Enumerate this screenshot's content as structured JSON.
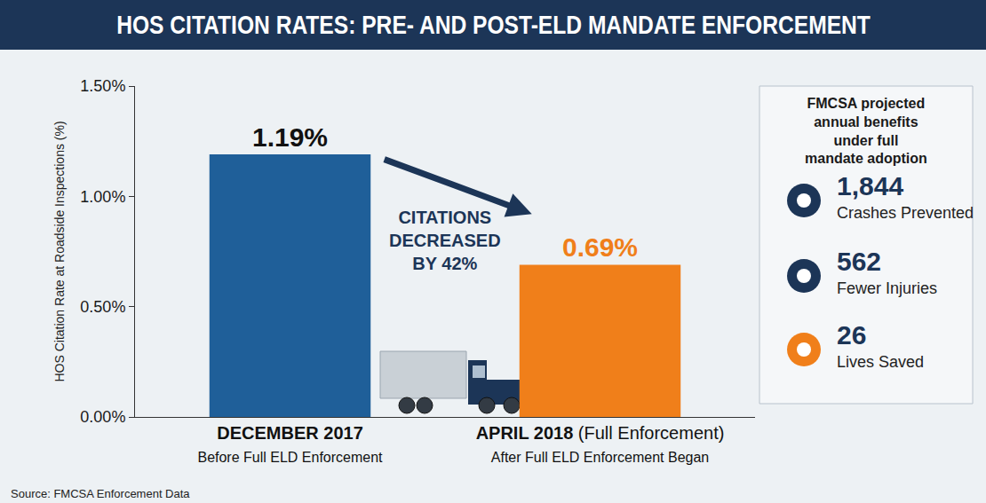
{
  "chart_data": {
    "type": "bar",
    "title": "HOS CITATION RATES: PRE- AND POST-ELD MANDATE ENFORCEMENT",
    "y_label": "HOS Citation Rate at Roadside Inspections (%)",
    "categories": [
      "DECEMBER 2017",
      "APRIL 2018 (Full Enforcement)"
    ],
    "category_subtitles": [
      "Before Full ELD Enforcement",
      "After Full ELD Enforcement Began"
    ],
    "values": [
      1.19,
      0.69
    ],
    "value_labels": [
      "1.19%",
      "0.69%"
    ],
    "colors": [
      "#1f5f99",
      "#f07f1a"
    ],
    "data_labels": true,
    "ylim": [
      0,
      1.5
    ],
    "yticks": [
      {
        "value": 0,
        "label": "0.00%"
      },
      {
        "value": 0.5,
        "label": "0.50%"
      },
      {
        "value": 1.0,
        "label": "1.00%"
      },
      {
        "value": 1.5,
        "label": "1.50%"
      }
    ],
    "grid": false,
    "annotations": [
      "CITATIONS DECREASED BY 42%"
    ],
    "side_panel": {
      "title": "FMCSA projected annual benefits under full mandate adoption",
      "items": [
        {
          "figure": "1,844",
          "text": "Crashes Prevented"
        },
        {
          "figure": "562",
          "text": "Fewer Injuries"
        },
        {
          "figure": "26",
          "text": "Lives Saved"
        }
      ]
    },
    "source": "Source: FMCSA Enforcement Data"
  }
}
